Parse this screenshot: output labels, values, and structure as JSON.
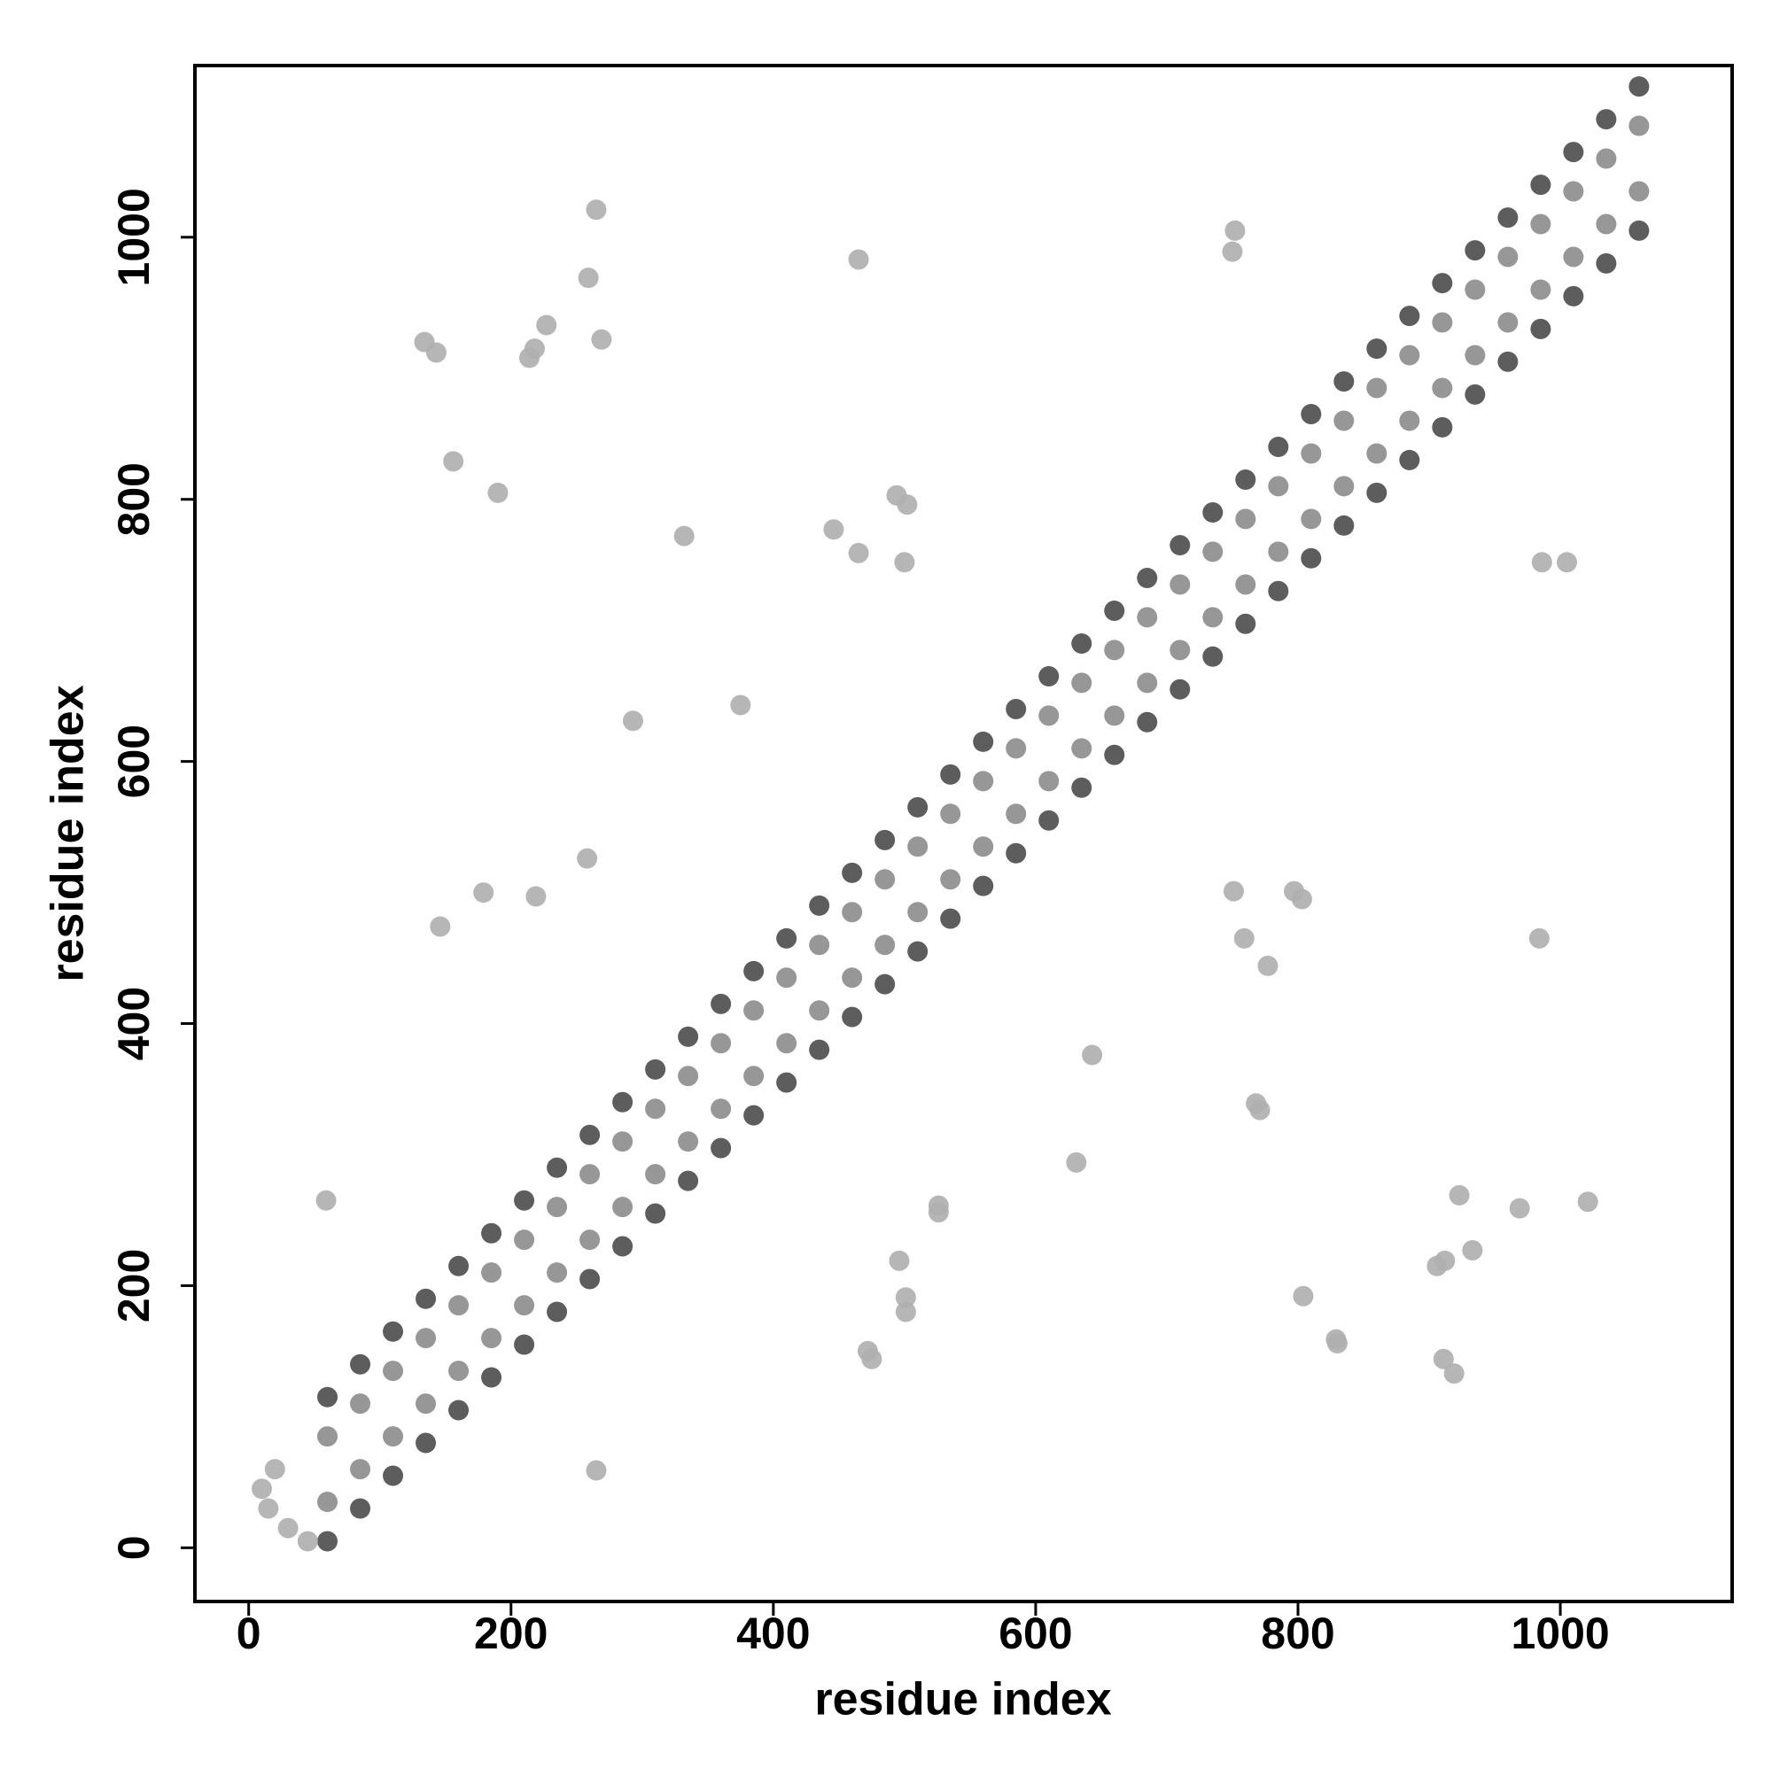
{
  "chart_data": {
    "type": "scatter",
    "x_label": "residue index",
    "y_label": "residue index",
    "xlim": [
      -41,
      1131
    ],
    "ylim": [
      -41,
      1131
    ],
    "xticks": [
      0,
      200,
      400,
      600,
      800,
      1000
    ],
    "yticks": [
      0,
      200,
      400,
      600,
      800,
      1000
    ],
    "series": [
      {
        "color": "#4f4f4f",
        "x": [
          60,
          60,
          85,
          85,
          110,
          110,
          135,
          135,
          160,
          160,
          185,
          185,
          210,
          210,
          235,
          235,
          260,
          260,
          285,
          285,
          310,
          310,
          335,
          335,
          360,
          360,
          385,
          385,
          410,
          410,
          435,
          435,
          460,
          460,
          485,
          485,
          510,
          510,
          535,
          535,
          560,
          560,
          585,
          585,
          610,
          610,
          635,
          635,
          660,
          660,
          685,
          685,
          710,
          710,
          735,
          735,
          760,
          760,
          785,
          785,
          810,
          810,
          835,
          835,
          860,
          860,
          885,
          885,
          910,
          910,
          935,
          935,
          960,
          960,
          985,
          985,
          1010,
          1010,
          1035,
          1035,
          1060,
          1060
        ],
        "y": [
          5,
          115,
          30,
          140,
          55,
          165,
          80,
          190,
          105,
          215,
          130,
          240,
          155,
          265,
          180,
          290,
          205,
          315,
          230,
          340,
          255,
          365,
          280,
          390,
          305,
          415,
          330,
          440,
          355,
          465,
          380,
          490,
          405,
          515,
          430,
          540,
          455,
          565,
          480,
          590,
          505,
          615,
          530,
          640,
          555,
          665,
          580,
          690,
          605,
          715,
          630,
          740,
          655,
          765,
          680,
          790,
          705,
          815,
          730,
          840,
          755,
          865,
          780,
          890,
          805,
          915,
          830,
          940,
          855,
          965,
          880,
          990,
          905,
          1015,
          930,
          1040,
          955,
          1065,
          980,
          1090,
          1005,
          1115
        ]
      },
      {
        "color": "#8e8e8e",
        "x": [
          60,
          60,
          85,
          85,
          110,
          110,
          135,
          135,
          160,
          160,
          185,
          185,
          210,
          210,
          235,
          235,
          260,
          260,
          285,
          285,
          310,
          310,
          335,
          335,
          360,
          360,
          385,
          385,
          410,
          410,
          435,
          435,
          460,
          460,
          485,
          485,
          510,
          510,
          535,
          535,
          560,
          560,
          585,
          585,
          610,
          610,
          635,
          635,
          660,
          660,
          685,
          685,
          710,
          710,
          735,
          735,
          760,
          760,
          785,
          785,
          810,
          810,
          835,
          835,
          860,
          860,
          885,
          885,
          910,
          910,
          935,
          935,
          960,
          960,
          985,
          985,
          1010,
          1010,
          1035,
          1035,
          1060,
          1060
        ],
        "y": [
          35,
          85,
          60,
          110,
          85,
          135,
          110,
          160,
          135,
          185,
          160,
          210,
          185,
          235,
          210,
          260,
          235,
          285,
          260,
          310,
          285,
          335,
          310,
          360,
          335,
          385,
          360,
          410,
          385,
          435,
          410,
          460,
          435,
          485,
          460,
          510,
          485,
          535,
          510,
          560,
          535,
          585,
          560,
          610,
          585,
          635,
          610,
          660,
          635,
          685,
          660,
          710,
          685,
          735,
          710,
          760,
          735,
          785,
          760,
          810,
          785,
          835,
          810,
          860,
          835,
          885,
          860,
          910,
          885,
          935,
          910,
          960,
          935,
          985,
          960,
          1010,
          985,
          1035,
          1010,
          1060,
          1035,
          1085
        ]
      },
      {
        "color": "#b0b0b0",
        "x": [
          10,
          20,
          30,
          45,
          15,
          265,
          259,
          269,
          227,
          218,
          214,
          134,
          143,
          156,
          190,
          465,
          332,
          375,
          293,
          446,
          465,
          494,
          502,
          500,
          59,
          265,
          146,
          179,
          219,
          258,
          752,
          750,
          751,
          759,
          777,
          797,
          803,
          768,
          771,
          643,
          631,
          526,
          526,
          496,
          501,
          501,
          472,
          475,
          804,
          829,
          830,
          923,
          933,
          912,
          906,
          911,
          919,
          969,
          1021,
          984,
          986,
          1005
        ],
        "y": [
          45,
          60,
          15,
          5,
          30,
          1021,
          969,
          922,
          933,
          915,
          908,
          920,
          912,
          829,
          805,
          983,
          772,
          643,
          631,
          777,
          759,
          803,
          796,
          752,
          265,
          59,
          474,
          500,
          497,
          526,
          1005,
          989,
          501,
          465,
          444,
          501,
          495,
          339,
          334,
          376,
          294,
          261,
          256,
          219,
          191,
          180,
          150,
          144,
          192,
          159,
          156,
          269,
          227,
          219,
          215,
          144,
          133,
          259,
          264,
          465,
          752,
          752
        ]
      }
    ]
  }
}
